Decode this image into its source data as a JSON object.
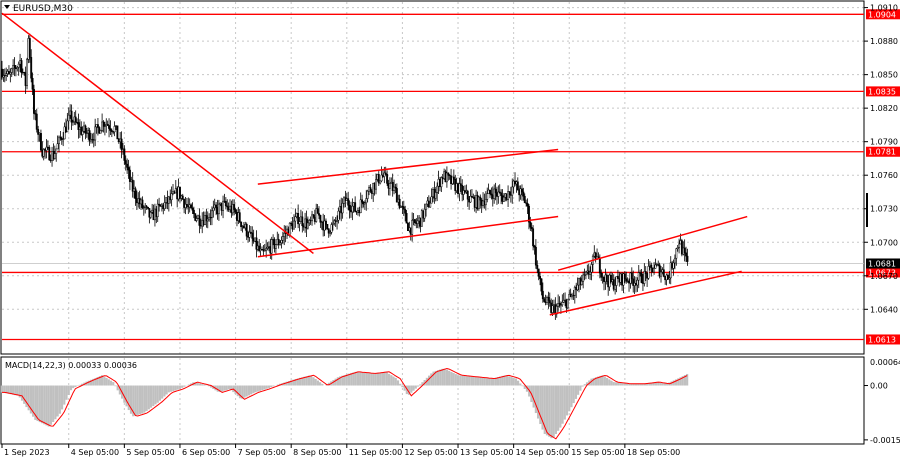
{
  "symbol_label": "EURUSD,M30",
  "macd_label": "MACD(14,22,3) 0.00033 0.00036",
  "colors": {
    "background": "#ffffff",
    "candles": "#000000",
    "levels": "#ff0000",
    "grid": "#c8c8c8",
    "macd_hist": "#c0c0c0",
    "macd_signal": "#ff0000",
    "current_price_bg": "#000000"
  },
  "chart_data": [
    {
      "type": "candlestick",
      "symbol": "EURUSD",
      "timeframe": "M30",
      "ylim": [
        1.06,
        1.0915
      ],
      "y_ticks": [
        1.091,
        1.088,
        1.085,
        1.082,
        1.079,
        1.076,
        1.073,
        1.07,
        1.067,
        1.064
      ],
      "y_tick_labels": [
        "1.0910",
        "1.0880",
        "1.0850",
        "1.0820",
        "1.0790",
        "1.0760",
        "1.0730",
        "1.0700",
        "1.0670",
        "1.0640"
      ],
      "x_ticks": [
        {
          "label": "1 Sep 2023",
          "t": 0
        },
        {
          "label": "4 Sep 05:00",
          "t": 1.2
        },
        {
          "label": "5 Sep 05:00",
          "t": 2.2
        },
        {
          "label": "6 Sep 05:00",
          "t": 3.2
        },
        {
          "label": "7 Sep 05:00",
          "t": 4.2
        },
        {
          "label": "8 Sep 05:00",
          "t": 5.2
        },
        {
          "label": "11 Sep 05:00",
          "t": 6.2
        },
        {
          "label": "12 Sep 05:00",
          "t": 7.2
        },
        {
          "label": "13 Sep 05:00",
          "t": 8.2
        },
        {
          "label": "14 Sep 05:00",
          "t": 9.2
        },
        {
          "label": "15 Sep 05:00",
          "t": 10.2
        },
        {
          "label": "18 Sep 05:00",
          "t": 11.2
        }
      ],
      "xlim": [
        0,
        15.5
      ],
      "horizontal_levels": [
        {
          "price": 1.0904,
          "label": "1.0904"
        },
        {
          "price": 1.0835,
          "label": "1.0835"
        },
        {
          "price": 1.0781,
          "label": "1.0781"
        },
        {
          "price": 1.0673,
          "label": "1.0673"
        },
        {
          "price": 1.0613,
          "label": "1.0613"
        }
      ],
      "current_price": {
        "price": 1.0681,
        "label": "1.0681"
      },
      "trend_lines": [
        {
          "t1": 0.0,
          "p1": 1.0905,
          "t2": 5.6,
          "p2": 1.069
        },
        {
          "t1": 4.6,
          "p1": 1.0752,
          "t2": 10.0,
          "p2": 1.0783
        },
        {
          "t1": 4.6,
          "p1": 1.0687,
          "t2": 10.0,
          "p2": 1.0723
        },
        {
          "t1": 10.0,
          "p1": 1.0675,
          "t2": 13.4,
          "p2": 1.0723
        },
        {
          "t1": 9.85,
          "p1": 1.0635,
          "t2": 13.3,
          "p2": 1.0674
        }
      ],
      "price_path": [
        [
          0.0,
          1.0855
        ],
        [
          0.15,
          1.0848
        ],
        [
          0.35,
          1.0862
        ],
        [
          0.45,
          1.0842
        ],
        [
          0.5,
          1.0885
        ],
        [
          0.6,
          1.0815
        ],
        [
          0.75,
          1.0782
        ],
        [
          0.95,
          1.0778
        ],
        [
          1.1,
          1.0795
        ],
        [
          1.25,
          1.0812
        ],
        [
          1.45,
          1.08
        ],
        [
          1.65,
          1.0795
        ],
        [
          1.85,
          1.0808
        ],
        [
          2.05,
          1.0802
        ],
        [
          2.2,
          1.078
        ],
        [
          2.35,
          1.075
        ],
        [
          2.5,
          1.0735
        ],
        [
          2.7,
          1.0722
        ],
        [
          2.85,
          1.073
        ],
        [
          3.05,
          1.0738
        ],
        [
          3.2,
          1.0745
        ],
        [
          3.4,
          1.0728
        ],
        [
          3.6,
          1.072
        ],
        [
          3.8,
          1.0726
        ],
        [
          4.0,
          1.0733
        ],
        [
          4.2,
          1.0728
        ],
        [
          4.4,
          1.0712
        ],
        [
          4.55,
          1.07
        ],
        [
          4.7,
          1.0688
        ],
        [
          4.85,
          1.0696
        ],
        [
          5.0,
          1.07
        ],
        [
          5.15,
          1.071
        ],
        [
          5.35,
          1.0722
        ],
        [
          5.55,
          1.0715
        ],
        [
          5.7,
          1.0726
        ],
        [
          5.85,
          1.0712
        ],
        [
          6.0,
          1.0715
        ],
        [
          6.2,
          1.0738
        ],
        [
          6.4,
          1.0728
        ],
        [
          6.6,
          1.0745
        ],
        [
          6.85,
          1.076
        ],
        [
          7.1,
          1.0745
        ],
        [
          7.35,
          1.0712
        ],
        [
          7.55,
          1.072
        ],
        [
          7.75,
          1.074
        ],
        [
          7.95,
          1.076
        ],
        [
          8.15,
          1.0752
        ],
        [
          8.4,
          1.074
        ],
        [
          8.6,
          1.0735
        ],
        [
          8.85,
          1.0745
        ],
        [
          9.05,
          1.074
        ],
        [
          9.25,
          1.0752
        ],
        [
          9.45,
          1.0735
        ],
        [
          9.55,
          1.071
        ],
        [
          9.65,
          1.0675
        ],
        [
          9.75,
          1.065
        ],
        [
          9.9,
          1.064
        ],
        [
          10.05,
          1.0642
        ],
        [
          10.25,
          1.065
        ],
        [
          10.4,
          1.0662
        ],
        [
          10.55,
          1.067
        ],
        [
          10.7,
          1.0688
        ],
        [
          10.85,
          1.0668
        ],
        [
          11.0,
          1.0663
        ],
        [
          11.2,
          1.0668
        ],
        [
          11.4,
          1.0666
        ],
        [
          11.6,
          1.067
        ],
        [
          11.75,
          1.0678
        ],
        [
          11.9,
          1.0674
        ],
        [
          12.0,
          1.0668
        ],
        [
          12.1,
          1.0685
        ],
        [
          12.2,
          1.0702
        ],
        [
          12.3,
          1.0686
        ],
        [
          12.35,
          1.0681
        ]
      ]
    },
    {
      "type": "histogram",
      "title": "MACD(14,22,3)",
      "values_label": "0.00033 0.00036",
      "y_ticks": [
        0.0,
        -0.00158
      ],
      "y_tick_labels": [
        "0.00",
        "-0.00158"
      ],
      "top_tick_label": "0.00064",
      "ylim": [
        -0.0017,
        0.0008
      ],
      "histogram_path": [
        [
          0.0,
          -0.0002
        ],
        [
          0.3,
          -0.0003
        ],
        [
          0.6,
          -0.001
        ],
        [
          0.85,
          -0.0012
        ],
        [
          1.05,
          -0.0008
        ],
        [
          1.25,
          -0.0001
        ],
        [
          1.5,
          0.0001
        ],
        [
          1.8,
          0.0003
        ],
        [
          2.0,
          0.0001
        ],
        [
          2.2,
          -0.0005
        ],
        [
          2.35,
          -0.0009
        ],
        [
          2.55,
          -0.0008
        ],
        [
          2.8,
          -0.0005
        ],
        [
          3.0,
          -0.0002
        ],
        [
          3.2,
          -0.0001
        ],
        [
          3.45,
          0.0001
        ],
        [
          3.7,
          0.0
        ],
        [
          3.9,
          -0.0002
        ],
        [
          4.1,
          -0.0001
        ],
        [
          4.3,
          -0.0004
        ],
        [
          4.55,
          -0.0002
        ],
        [
          4.75,
          -0.0001
        ],
        [
          5.0,
          5e-05
        ],
        [
          5.3,
          0.0002
        ],
        [
          5.55,
          0.0003
        ],
        [
          5.8,
          0.0
        ],
        [
          6.05,
          0.00025
        ],
        [
          6.35,
          0.0004
        ],
        [
          6.65,
          0.00035
        ],
        [
          6.9,
          0.0004
        ],
        [
          7.1,
          0.0002
        ],
        [
          7.3,
          -0.0003
        ],
        [
          7.5,
          0.0
        ],
        [
          7.75,
          0.0004
        ],
        [
          7.95,
          0.0005
        ],
        [
          8.2,
          0.0003
        ],
        [
          8.5,
          0.00025
        ],
        [
          8.8,
          0.0002
        ],
        [
          9.05,
          0.0003
        ],
        [
          9.25,
          0.0002
        ],
        [
          9.45,
          -0.0002
        ],
        [
          9.6,
          -0.0008
        ],
        [
          9.75,
          -0.0014
        ],
        [
          9.9,
          -0.00155
        ],
        [
          10.05,
          -0.0012
        ],
        [
          10.25,
          -0.0006
        ],
        [
          10.45,
          0.0
        ],
        [
          10.6,
          0.0002
        ],
        [
          10.8,
          0.0003
        ],
        [
          11.0,
          0.0001
        ],
        [
          11.25,
          5e-05
        ],
        [
          11.5,
          5e-05
        ],
        [
          11.75,
          0.0001
        ],
        [
          11.95,
          5e-05
        ],
        [
          12.15,
          0.0002
        ],
        [
          12.35,
          0.00036
        ]
      ]
    }
  ]
}
